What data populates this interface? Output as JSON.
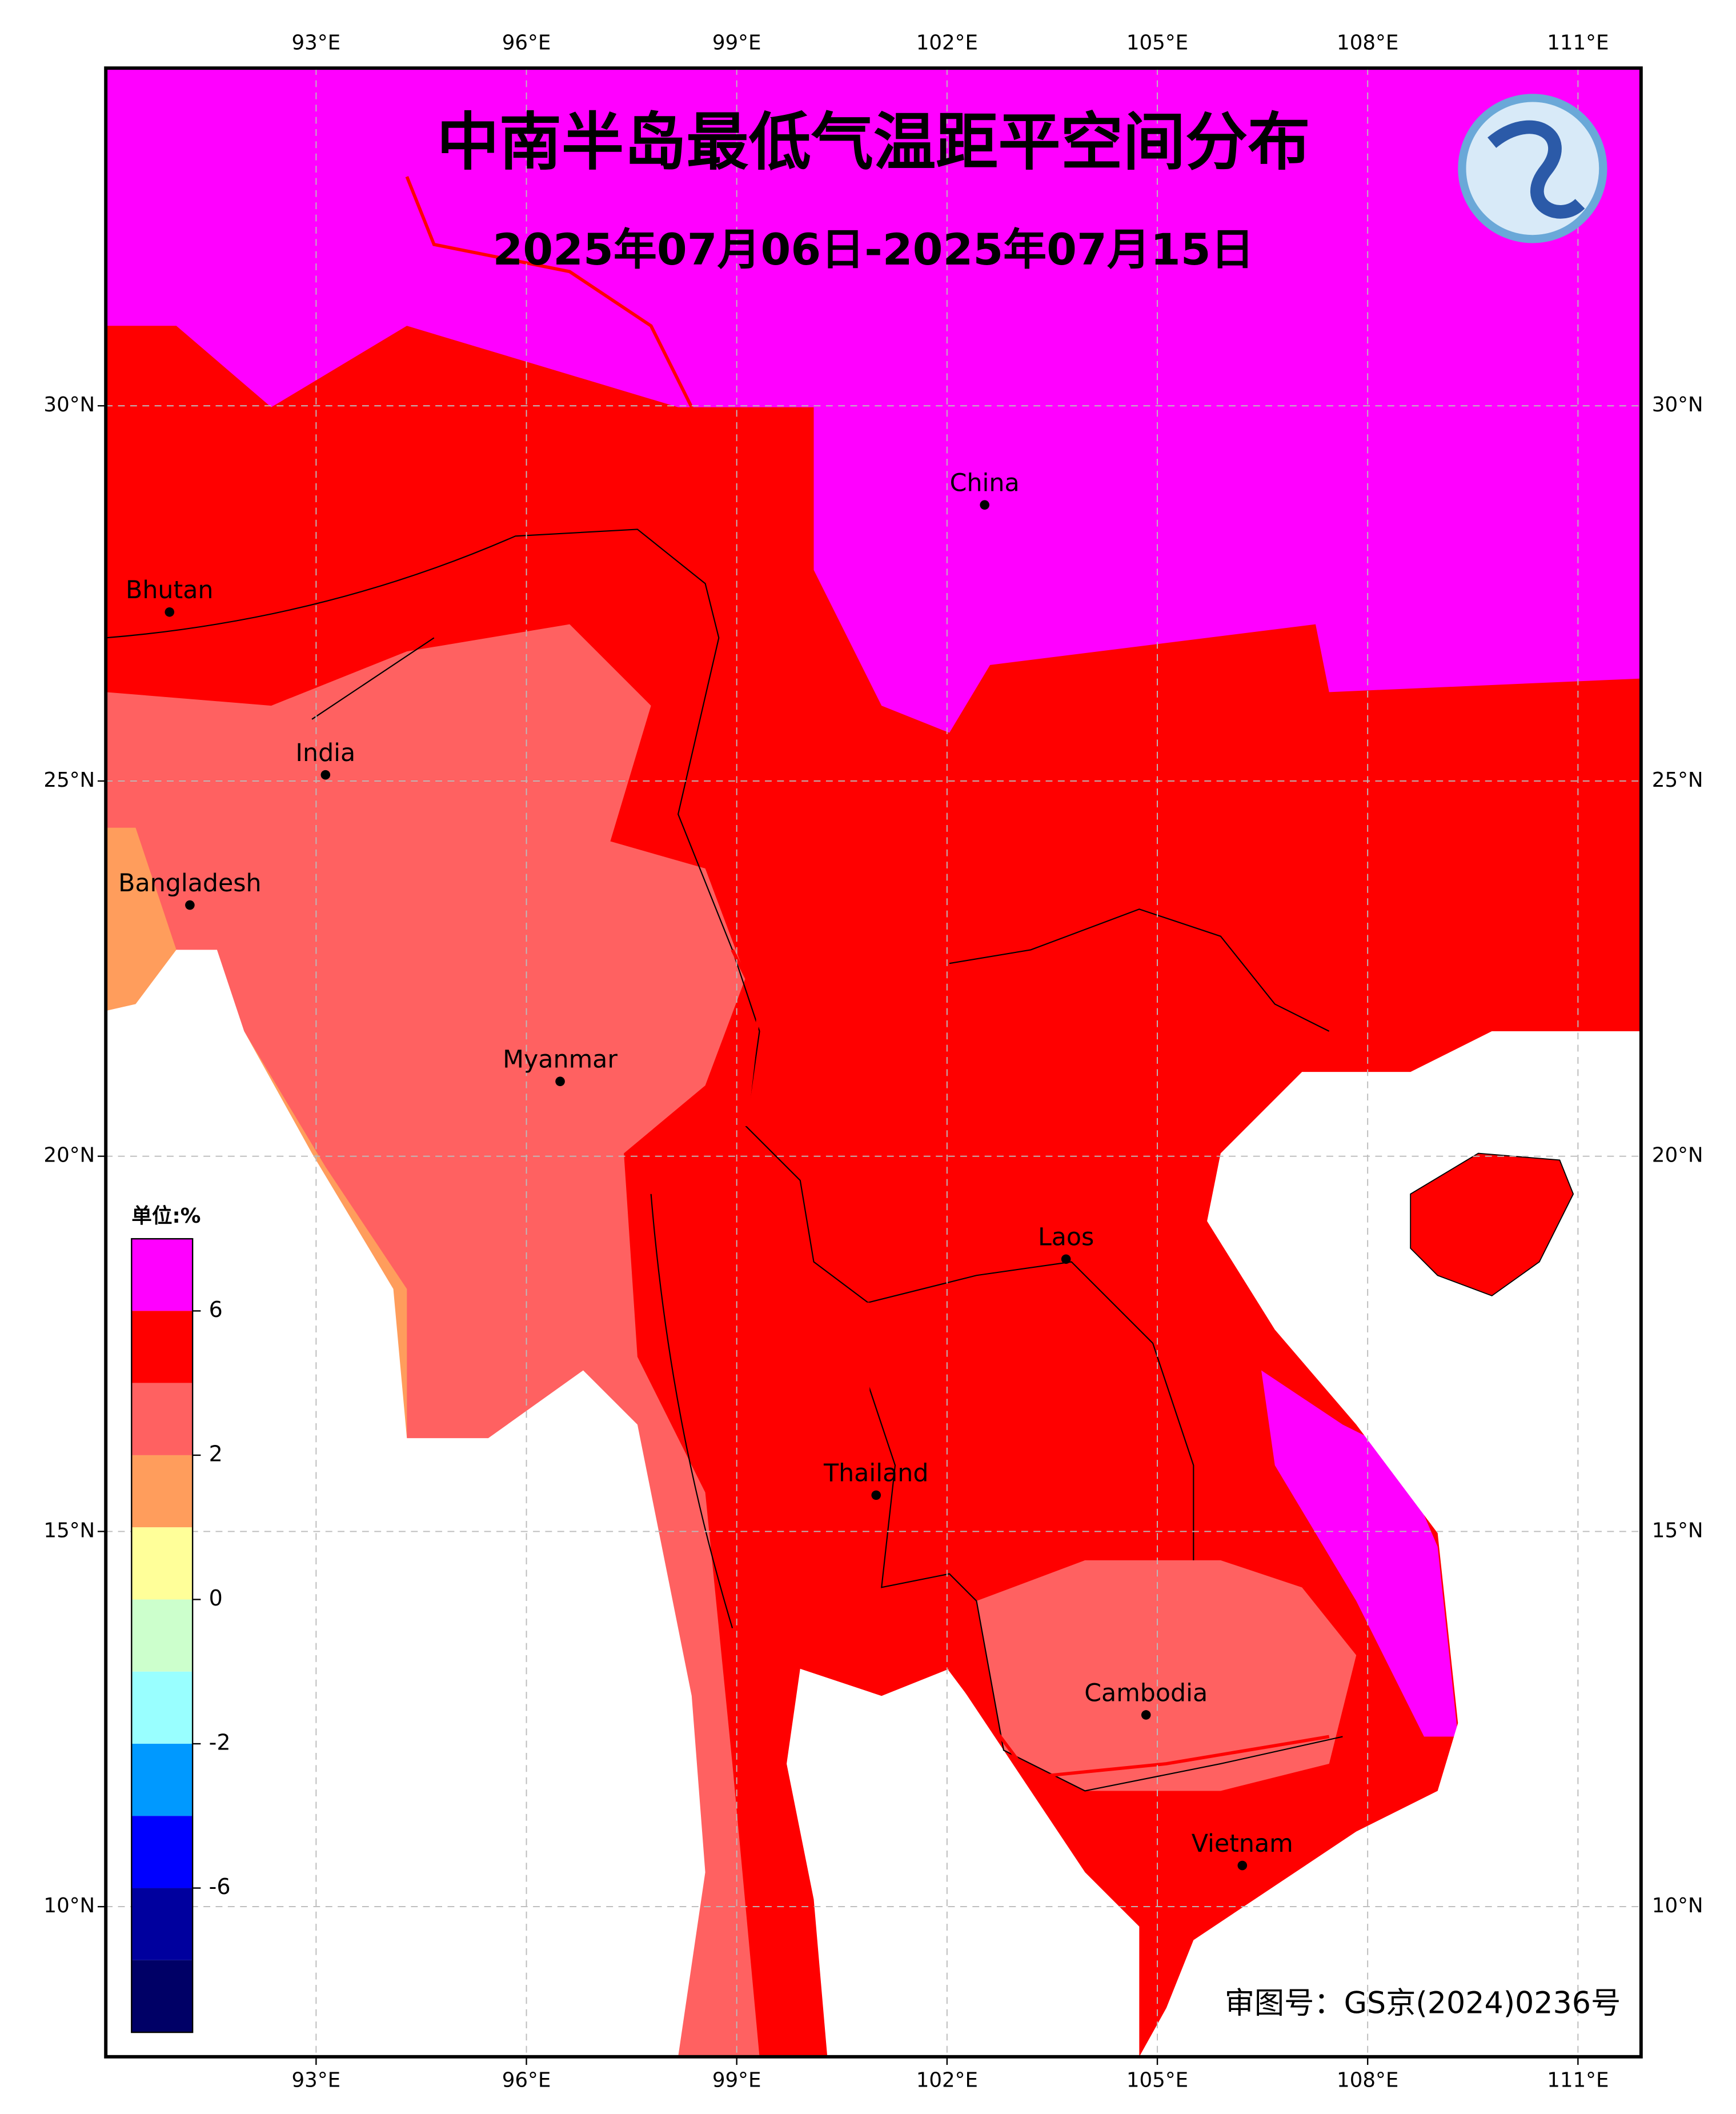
{
  "map": {
    "title": "中南半岛最低气温距平空间分布",
    "subtitle": "2025年07月06日-2025年07月15日",
    "lon_ticks": [
      {
        "value": 93,
        "label": "93°E"
      },
      {
        "value": 96,
        "label": "96°E"
      },
      {
        "value": 99,
        "label": "99°E"
      },
      {
        "value": 102,
        "label": "102°E"
      },
      {
        "value": 105,
        "label": "105°E"
      },
      {
        "value": 108,
        "label": "108°E"
      },
      {
        "value": 111,
        "label": "111°E"
      }
    ],
    "lat_ticks": [
      {
        "value": 10,
        "label": "10°N"
      },
      {
        "value": 15,
        "label": "15°N"
      },
      {
        "value": 20,
        "label": "20°N"
      },
      {
        "value": 25,
        "label": "25°N"
      },
      {
        "value": 30,
        "label": "30°N"
      }
    ],
    "lonlim": [
      90,
      111.9
    ],
    "latlim": [
      8,
      34.5
    ],
    "places": [
      "China",
      "Bhutan",
      "India",
      "Bangladesh",
      "Myanmar",
      "Laos",
      "Thailand",
      "Cambodia",
      "Vietnam"
    ],
    "colorbar": {
      "unit": "单位:%",
      "colors": [
        "#ff00ff",
        "#ff0000",
        "#ff6161",
        "#ff9d5c",
        "#ffff99",
        "#ccffcc",
        "#99ffff",
        "#0099ff",
        "#0000ff",
        "#00009e",
        "#000066"
      ],
      "labels": [
        6,
        2,
        0,
        -2,
        -6
      ]
    },
    "approval": "审图号：GS京(2024)0236号"
  }
}
